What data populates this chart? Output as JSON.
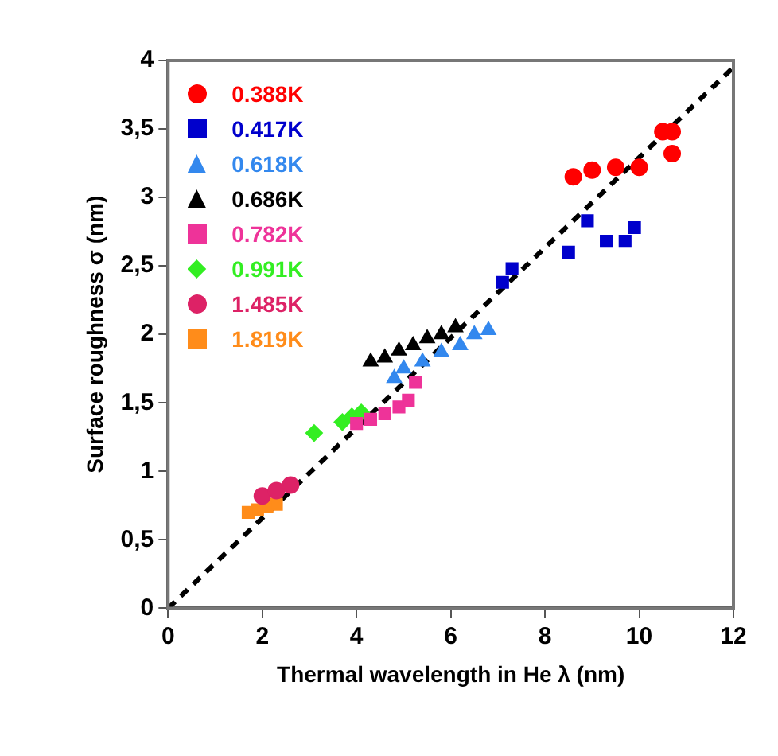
{
  "chart_data": {
    "type": "scatter",
    "xlabel": "Thermal wavelength in He λ (nm)",
    "ylabel": "Surface roughness σ (nm)",
    "xlim": [
      0,
      12
    ],
    "xticks": [
      0,
      2,
      4,
      6,
      8,
      10,
      12
    ],
    "ylim": [
      0,
      4
    ],
    "yticks": [
      0,
      {
        "value": 0.5,
        "label": "0,5"
      },
      1,
      {
        "value": 1.5,
        "label": "1,5"
      },
      2,
      {
        "value": 2.5,
        "label": "2,5"
      },
      3,
      {
        "value": 3.5,
        "label": "3,5"
      },
      4
    ],
    "grid": false,
    "legend": "top left",
    "series": [
      {
        "name": "0.388K",
        "color": "#ff0000",
        "marker": "circle",
        "x": [
          8.6,
          9.0,
          9.5,
          10.0,
          10.5,
          10.7,
          10.7
        ],
        "values": [
          3.15,
          3.2,
          3.22,
          3.22,
          3.48,
          3.48,
          3.32
        ]
      },
      {
        "name": "0.417K",
        "color": "#0000cc",
        "marker": "square",
        "x": [
          7.1,
          7.3,
          8.5,
          8.9,
          9.3,
          9.7,
          9.9
        ],
        "values": [
          2.38,
          2.48,
          2.6,
          2.83,
          2.68,
          2.68,
          2.78
        ]
      },
      {
        "name": "0.618K",
        "color": "#3388ee",
        "marker": "triangle",
        "x": [
          4.8,
          5.0,
          5.4,
          5.8,
          6.2,
          6.5,
          6.8
        ],
        "values": [
          1.68,
          1.75,
          1.8,
          1.87,
          1.92,
          2.0,
          2.03
        ]
      },
      {
        "name": "0.686K",
        "color": "#000000",
        "marker": "triangle",
        "x": [
          4.3,
          4.6,
          4.9,
          5.2,
          5.5,
          5.8,
          6.1
        ],
        "values": [
          1.8,
          1.83,
          1.88,
          1.92,
          1.97,
          2.0,
          2.05
        ]
      },
      {
        "name": "0.782K",
        "color": "#ee3399",
        "marker": "square",
        "x": [
          4.0,
          4.3,
          4.6,
          4.9,
          5.1,
          5.25
        ],
        "values": [
          1.35,
          1.38,
          1.42,
          1.47,
          1.52,
          1.65
        ]
      },
      {
        "name": "0.991K",
        "color": "#33ee22",
        "marker": "diamond",
        "x": [
          3.1,
          3.7,
          3.9,
          4.1
        ],
        "values": [
          1.28,
          1.36,
          1.4,
          1.43
        ]
      },
      {
        "name": "1.485K",
        "color": "#dd2266",
        "marker": "circle",
        "x": [
          2.0,
          2.3,
          2.6
        ],
        "values": [
          0.82,
          0.86,
          0.9
        ]
      },
      {
        "name": "1.819K",
        "color": "#ff8c1a",
        "marker": "square",
        "x": [
          1.7,
          1.9,
          2.1,
          2.3
        ],
        "values": [
          0.7,
          0.72,
          0.74,
          0.76
        ]
      },
      {
        "type": "line",
        "color": "#000000",
        "line_style": "dashed",
        "marker": "none",
        "x": [
          0,
          12
        ],
        "values": [
          0,
          3.95
        ]
      }
    ]
  }
}
